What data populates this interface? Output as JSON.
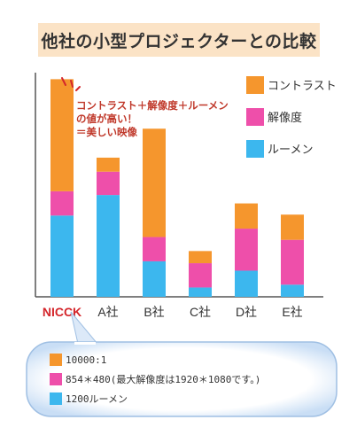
{
  "title": "他社の小型プロジェクターとの比較",
  "colors": {
    "orange": "#f5962d",
    "magenta": "#ee4faa",
    "blue": "#3cb7ee",
    "axis": "#555555",
    "highlight_label": "#d4262b",
    "annotation_marks": "#d4262b"
  },
  "legend": [
    {
      "label": "コントラスト",
      "color": "#f5962d"
    },
    {
      "label": "解像度",
      "color": "#ee4faa"
    },
    {
      "label": "ルーメン",
      "color": "#3cb7ee"
    }
  ],
  "annotation": {
    "lines": [
      "コントラスト＋解像度＋ルーメン",
      "の値が高い！",
      "＝美しい映像"
    ]
  },
  "bubble_legend": [
    {
      "label": "10000:1",
      "color": "#f5962d"
    },
    {
      "label": "854＊480(最大解像度は1920＊1080です。)",
      "color": "#ee4faa"
    },
    {
      "label": "1200ルーメン",
      "color": "#3cb7ee"
    }
  ],
  "chart_data": {
    "type": "bar",
    "stacked": true,
    "categories": [
      "NICCK",
      "A社",
      "B社",
      "C社",
      "D社",
      "E社"
    ],
    "highlighted_category": "NICCK",
    "series": [
      {
        "name": "ルーメン",
        "color": "#3cb7ee",
        "values": [
          87,
          109,
          38,
          10,
          28,
          13
        ]
      },
      {
        "name": "解像度",
        "color": "#ee4faa",
        "values": [
          26,
          25,
          26,
          26,
          45,
          48
        ]
      },
      {
        "name": "コントラスト",
        "color": "#f5962d",
        "values": [
          120,
          15,
          116,
          13,
          27,
          27
        ]
      }
    ],
    "ylim": [
      0,
      240
    ],
    "grid": false,
    "legend_position": "right"
  }
}
